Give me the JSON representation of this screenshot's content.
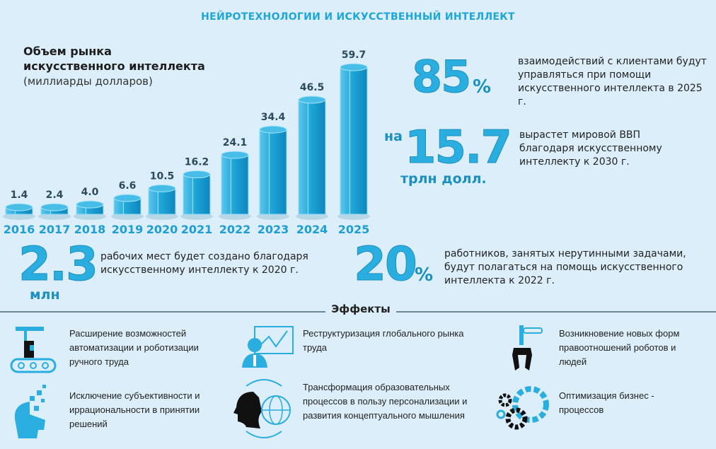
{
  "title": "НЕЙРОТЕХНОЛОГИИ И ИСКУССТВЕННЫЙ ИНТЕЛЛЕКТ",
  "chart_data": {
    "type": "bar",
    "title": "Объем рынка искусственного интеллекта",
    "subtitle": "(миллиарды долларов)",
    "categories": [
      "2016",
      "2017",
      "2018",
      "2019",
      "2020",
      "2021",
      "2022",
      "2023",
      "2024",
      "2025"
    ],
    "values": [
      1.4,
      2.4,
      4.0,
      6.6,
      10.5,
      16.2,
      24.1,
      34.4,
      46.5,
      59.7
    ],
    "value_labels": [
      "1.4",
      "2.4",
      "4.0",
      "6.6",
      "10.5",
      "16.2",
      "24.1",
      "34.4",
      "46.5",
      "59.7"
    ],
    "bar_color": "#1ea6d8"
  },
  "stats": [
    {
      "prefix": "",
      "value": "85",
      "suffix": "%",
      "text": "взаимодействий с клиентами будут управляться при помощи искусственного интеллекта в 2025 г."
    },
    {
      "prefix": "на",
      "value": "15.7",
      "suffix": "трлн долл.",
      "text": "вырастет мировой ВВП благодаря искусственному интеллекту к 2030 г."
    },
    {
      "prefix": "",
      "value": "2.3",
      "suffix": "млн",
      "text": "рабочих мест будет создано благодаря искусственному интеллекту к 2020 г."
    },
    {
      "prefix": "",
      "value": "20",
      "suffix": "%",
      "text": "работников, занятых нерутинными задачами, будут полагаться на помощь искусственного интеллекта к 2022 г."
    }
  ],
  "effects": {
    "heading": "Эффекты",
    "items": [
      {
        "icon": "robot-conveyor-icon",
        "text": "Расширение возможностей автоматизации и роботизации ручного труда"
      },
      {
        "icon": "presenter-chart-icon",
        "text": "Реструктуризация глобального рынка труда"
      },
      {
        "icon": "robot-claw-icon",
        "text": "Возникновение новых форм правоотношений роботов и людей"
      },
      {
        "icon": "digital-head-icon",
        "text": "Исключение субъективности и иррациональности в принятии решений"
      },
      {
        "icon": "head-globe-icon",
        "text": "Трансформация образовательных процессов в пользу персонализации и развития концептуального мышления"
      },
      {
        "icon": "gears-icon",
        "text": "Оптимизация бизнес - процессов"
      }
    ]
  }
}
